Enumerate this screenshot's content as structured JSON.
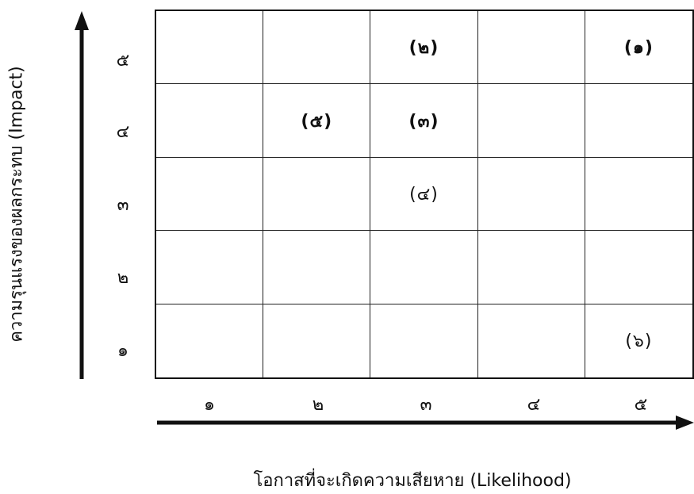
{
  "y_axis": {
    "title": "ความรุนแรงของผลกระทบ (Impact)",
    "ticks": [
      "๕",
      "๔",
      "๓",
      "๒",
      "๑"
    ]
  },
  "x_axis": {
    "title": "โอกาสที่จะเกิดความเสียหาย (Likelihood)",
    "ticks": [
      "๑",
      "๒",
      "๓",
      "๔",
      "๕"
    ]
  },
  "markers": [
    {
      "label": "(๑)",
      "likelihood": 5,
      "impact": 5,
      "bold": true
    },
    {
      "label": "(๒)",
      "likelihood": 3,
      "impact": 5,
      "bold": true
    },
    {
      "label": "(๓)",
      "likelihood": 3,
      "impact": 4,
      "bold": true
    },
    {
      "label": "(๔)",
      "likelihood": 3,
      "impact": 3,
      "bold": false
    },
    {
      "label": "(๕)",
      "likelihood": 2,
      "impact": 4,
      "bold": true
    },
    {
      "label": "(๖)",
      "likelihood": 5,
      "impact": 1,
      "bold": false
    }
  ]
}
